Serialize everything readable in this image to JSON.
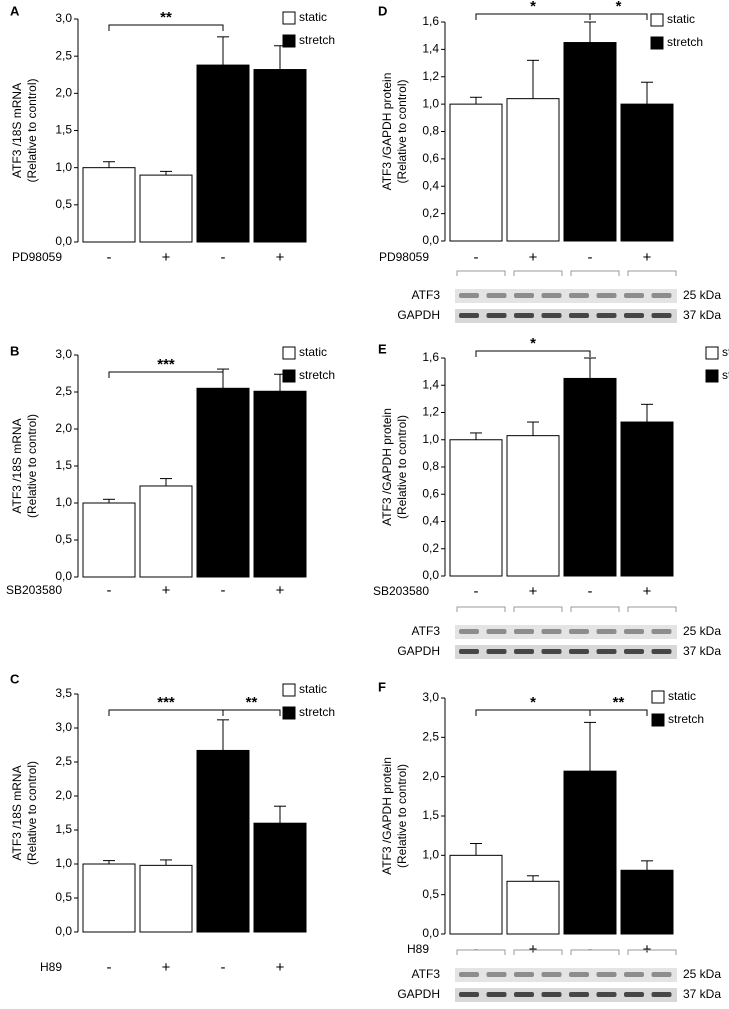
{
  "chart_data": [
    {
      "type": "bar",
      "panel": "A",
      "ylabel": [
        "ATF3 /18S mRNA",
        "(Relative to control)"
      ],
      "treatment": "PD98059",
      "categories": [
        "-",
        "+",
        "-",
        "+"
      ],
      "series": [
        {
          "name": "static",
          "color": "#ffffff",
          "values": [
            1.0,
            0.9,
            null,
            null
          ],
          "errors": [
            0.08,
            0.05,
            null,
            null
          ]
        },
        {
          "name": "stretch",
          "color": "#000000",
          "values": [
            null,
            null,
            2.38,
            2.32
          ],
          "errors": [
            null,
            null,
            0.38,
            0.32
          ]
        }
      ],
      "ylim": [
        0,
        3
      ],
      "yticks": [
        {
          "value": 0,
          "label": "0,0"
        },
        {
          "value": 0.5,
          "label": "0,5"
        },
        {
          "value": 1,
          "label": "1,0"
        },
        {
          "value": 1.5,
          "label": "1,5"
        },
        {
          "value": 2,
          "label": "2,0"
        },
        {
          "value": 2.5,
          "label": "2,5"
        },
        {
          "value": 3,
          "label": "3,0"
        }
      ],
      "annotations": [
        "**"
      ]
    },
    {
      "type": "bar",
      "panel": "B",
      "ylabel": [
        "ATF3 /18S mRNA",
        "(Relative to control)"
      ],
      "treatment": "SB203580",
      "categories": [
        "-",
        "+",
        "-",
        "+"
      ],
      "series": [
        {
          "name": "static",
          "color": "#ffffff",
          "values": [
            1.0,
            1.23,
            null,
            null
          ],
          "errors": [
            0.05,
            0.1,
            null,
            null
          ]
        },
        {
          "name": "stretch",
          "color": "#000000",
          "values": [
            null,
            null,
            2.55,
            2.51
          ],
          "errors": [
            null,
            null,
            0.26,
            0.23
          ]
        }
      ],
      "ylim": [
        0,
        3
      ],
      "yticks": [
        {
          "value": 0,
          "label": "0,0"
        },
        {
          "value": 0.5,
          "label": "0,5"
        },
        {
          "value": 1,
          "label": "1,0"
        },
        {
          "value": 1.5,
          "label": "1,5"
        },
        {
          "value": 2,
          "label": "2,0"
        },
        {
          "value": 2.5,
          "label": "2,5"
        },
        {
          "value": 3,
          "label": "3,0"
        }
      ],
      "annotations": [
        "***"
      ]
    },
    {
      "type": "bar",
      "panel": "C",
      "ylabel": [
        "ATF3 /18S mRNA",
        "(Relative to control)"
      ],
      "treatment": "H89",
      "categories": [
        "-",
        "+",
        "-",
        "+"
      ],
      "series": [
        {
          "name": "static",
          "color": "#ffffff",
          "values": [
            1.0,
            0.98,
            null,
            null
          ],
          "errors": [
            0.05,
            0.08,
            null,
            null
          ]
        },
        {
          "name": "stretch",
          "color": "#000000",
          "values": [
            null,
            null,
            2.67,
            1.6
          ],
          "errors": [
            null,
            null,
            0.45,
            0.25
          ]
        }
      ],
      "ylim": [
        0,
        3.5
      ],
      "yticks": [
        {
          "value": 0,
          "label": "0,0"
        },
        {
          "value": 0.5,
          "label": "0,5"
        },
        {
          "value": 1,
          "label": "1,0"
        },
        {
          "value": 1.5,
          "label": "1,5"
        },
        {
          "value": 2,
          "label": "2,0"
        },
        {
          "value": 2.5,
          "label": "2,5"
        },
        {
          "value": 3,
          "label": "3,0"
        },
        {
          "value": 3.5,
          "label": "3,5"
        }
      ],
      "annotations": [
        "***",
        "**"
      ]
    },
    {
      "type": "bar",
      "panel": "D",
      "ylabel": [
        "ATF3 /GAPDH protein",
        "(Relative to control)"
      ],
      "treatment": "PD98059",
      "categories": [
        "-",
        "+",
        "-",
        "+"
      ],
      "series": [
        {
          "name": "static",
          "color": "#ffffff",
          "values": [
            1.0,
            1.04,
            null,
            null
          ],
          "errors": [
            0.05,
            0.28,
            null,
            null
          ]
        },
        {
          "name": "stretch",
          "color": "#000000",
          "values": [
            null,
            null,
            1.45,
            1.0
          ],
          "errors": [
            null,
            null,
            0.15,
            0.16
          ]
        }
      ],
      "ylim": [
        0,
        1.6
      ],
      "yticks": [
        {
          "value": 0,
          "label": "0,0"
        },
        {
          "value": 0.2,
          "label": "0,2"
        },
        {
          "value": 0.4,
          "label": "0,4"
        },
        {
          "value": 0.6,
          "label": "0,6"
        },
        {
          "value": 0.8,
          "label": "0,8"
        },
        {
          "value": 1,
          "label": "1,0"
        },
        {
          "value": 1.2,
          "label": "1,2"
        },
        {
          "value": 1.4,
          "label": "1,4"
        },
        {
          "value": 1.6,
          "label": "1,6"
        }
      ],
      "annotations": [
        "*",
        "*"
      ],
      "blot": {
        "labels": [
          "ATF3",
          "GAPDH"
        ],
        "sizes": [
          "25 kDa",
          "37 kDa"
        ]
      }
    },
    {
      "type": "bar",
      "panel": "E",
      "ylabel": [
        "ATF3 /GAPDH protein",
        "(Relative to control)"
      ],
      "treatment": "SB203580",
      "categories": [
        "-",
        "+",
        "-",
        "+"
      ],
      "series": [
        {
          "name": "static",
          "color": "#ffffff",
          "values": [
            1.0,
            1.03,
            null,
            null
          ],
          "errors": [
            0.05,
            0.1,
            null,
            null
          ]
        },
        {
          "name": "stretch",
          "color": "#000000",
          "values": [
            null,
            null,
            1.45,
            1.13
          ],
          "errors": [
            null,
            null,
            0.15,
            0.13
          ]
        }
      ],
      "ylim": [
        0,
        1.6
      ],
      "yticks": [
        {
          "value": 0,
          "label": "0,0"
        },
        {
          "value": 0.2,
          "label": "0,2"
        },
        {
          "value": 0.4,
          "label": "0,4"
        },
        {
          "value": 0.6,
          "label": "0,6"
        },
        {
          "value": 0.8,
          "label": "0,8"
        },
        {
          "value": 1,
          "label": "1,0"
        },
        {
          "value": 1.2,
          "label": "1,2"
        },
        {
          "value": 1.4,
          "label": "1,4"
        },
        {
          "value": 1.6,
          "label": "1,6"
        }
      ],
      "annotations": [
        "*"
      ],
      "blot": {
        "labels": [
          "ATF3",
          "GAPDH"
        ],
        "sizes": [
          "25 kDa",
          "37 kDa"
        ]
      }
    },
    {
      "type": "bar",
      "panel": "F",
      "ylabel": [
        "ATF3 /GAPDH protein",
        "(Relative to control)"
      ],
      "treatment": "H89",
      "categories": [
        "-",
        "+",
        "-",
        "+"
      ],
      "series": [
        {
          "name": "static",
          "color": "#ffffff",
          "values": [
            1.0,
            0.67,
            null,
            null
          ],
          "errors": [
            0.15,
            0.07,
            null,
            null
          ]
        },
        {
          "name": "stretch",
          "color": "#000000",
          "values": [
            null,
            null,
            2.07,
            0.81
          ],
          "errors": [
            null,
            null,
            0.62,
            0.12
          ]
        }
      ],
      "ylim": [
        0,
        3
      ],
      "yticks": [
        {
          "value": 0,
          "label": "0,0"
        },
        {
          "value": 0.5,
          "label": "0,5"
        },
        {
          "value": 1,
          "label": "1,0"
        },
        {
          "value": 1.5,
          "label": "1,5"
        },
        {
          "value": 2,
          "label": "2,0"
        },
        {
          "value": 2.5,
          "label": "2,5"
        },
        {
          "value": 3,
          "label": "3,0"
        }
      ],
      "annotations": [
        "*",
        "**"
      ],
      "blot": {
        "labels": [
          "ATF3",
          "GAPDH"
        ],
        "sizes": [
          "25 kDa",
          "37 kDa"
        ]
      }
    }
  ]
}
